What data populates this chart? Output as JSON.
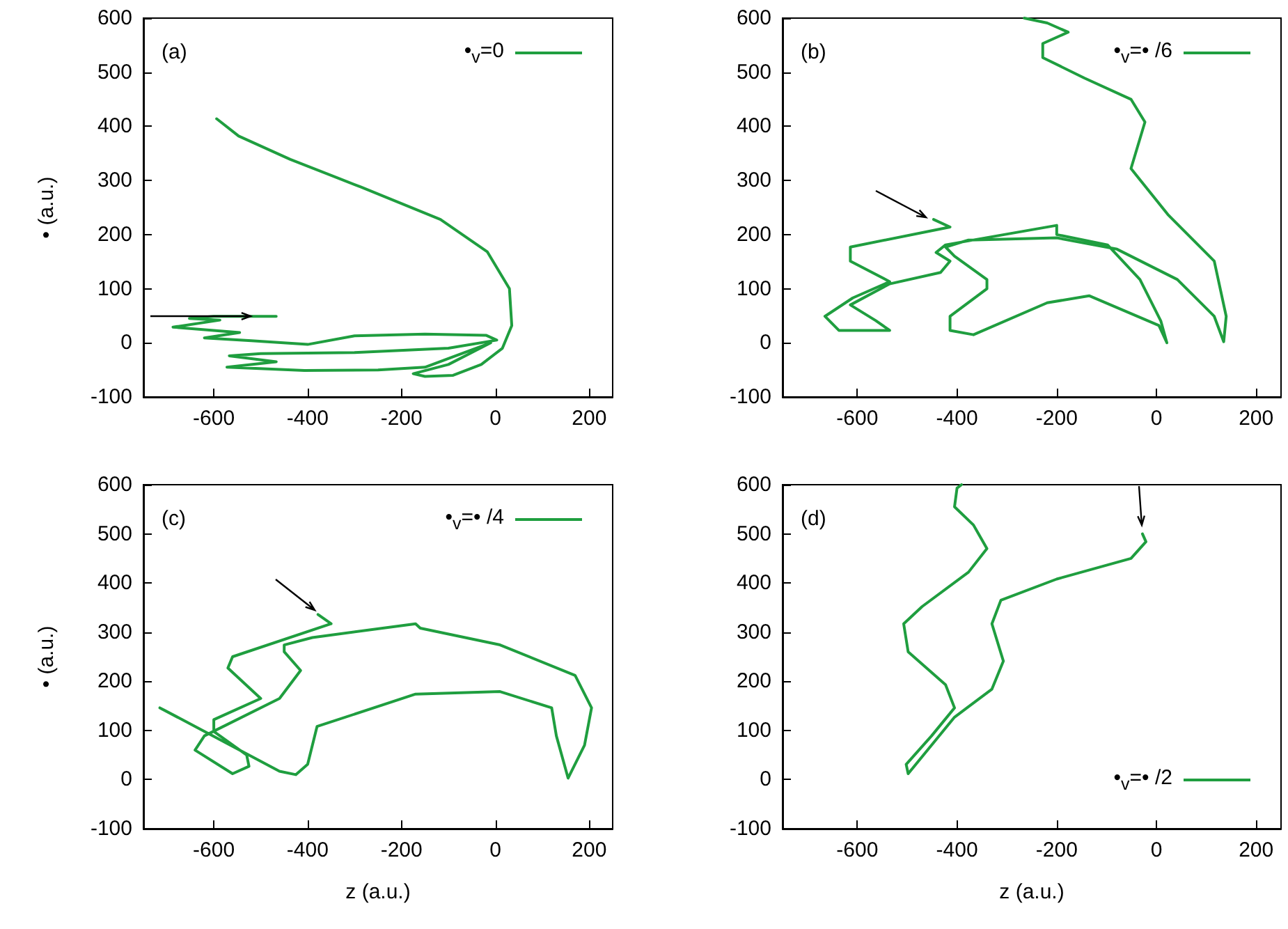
{
  "chart_data": [
    {
      "type": "line",
      "title": "(a)",
      "ylabel": "• (a.u.)",
      "xlim": [
        -750,
        250
      ],
      "ylim": [
        -100,
        600
      ],
      "xticks": [
        -600,
        -400,
        -200,
        0,
        200
      ],
      "yticks": [
        -100,
        0,
        100,
        200,
        300,
        400,
        500,
        600
      ],
      "legend": "top right",
      "marker": "none",
      "grid": false,
      "series": [
        {
          "name": "•$_{v}$=0",
          "color": "#1f9e3f",
          "x": [
            -467,
            -600,
            -652,
            -587,
            -687,
            -545,
            -620,
            -520,
            -400,
            -300,
            -150,
            -20,
            3,
            -100,
            -300,
            -500,
            -567,
            -467,
            -572,
            -407,
            -250,
            -150,
            -10,
            -100,
            -175,
            -150,
            -90,
            -30,
            15,
            35,
            30,
            -17,
            -117,
            -287,
            -437,
            -547,
            -594
          ],
          "values": [
            49,
            49,
            45,
            42,
            29,
            19,
            9,
            4,
            -3,
            13,
            16,
            14,
            5,
            -10,
            -18,
            -20,
            -24,
            -35,
            -45,
            -51,
            -50,
            -45,
            0,
            -40,
            -57,
            -62,
            -60,
            -40,
            -10,
            32,
            100,
            168,
            228,
            288,
            339,
            382,
            414
          ]
        }
      ]
    },
    {
      "type": "line",
      "title": "(b)",
      "xlim": [
        -750,
        250
      ],
      "ylim": [
        -100,
        600
      ],
      "xticks": [
        -600,
        -400,
        -200,
        0,
        200
      ],
      "yticks": [
        -100,
        0,
        100,
        200,
        300,
        400,
        500,
        600
      ],
      "legend": "top right",
      "marker": "none",
      "grid": false,
      "series": [
        {
          "name": "•$_{v}$=• /6",
          "color": "#1f9e3f",
          "x": [
            -447,
            -414,
            -614,
            -614,
            -535,
            -609,
            -665,
            -637,
            -535,
            -563,
            -614,
            -535,
            -433,
            -414,
            -442,
            -423,
            -200,
            -200,
            -98,
            -33,
            9,
            21,
            5,
            -135,
            -219,
            -367,
            -414,
            -414,
            -340,
            -340,
            -405,
            -423,
            -377,
            -200,
            -79,
            42,
            116,
            135,
            140,
            116,
            23,
            -51,
            -23,
            -51,
            -144,
            -228,
            -228,
            -177,
            -219,
            -265
          ],
          "values": [
            228,
            214,
            177,
            151,
            113,
            83,
            49,
            23,
            23,
            41,
            70,
            109,
            130,
            151,
            167,
            181,
            217,
            200,
            181,
            117,
            40,
            0,
            32,
            87,
            74,
            15,
            23,
            49,
            100,
            117,
            160,
            177,
            190,
            194,
            173,
            117,
            49,
            2,
            49,
            151,
            237,
            322,
            408,
            450,
            489,
            527,
            553,
            574,
            591,
            600
          ]
        }
      ]
    },
    {
      "type": "line",
      "title": "(c)",
      "xlabel": "z (a.u.)",
      "ylabel": "• (a.u.)",
      "xlim": [
        -750,
        250
      ],
      "ylim": [
        -100,
        600
      ],
      "xticks": [
        -600,
        -400,
        -200,
        0,
        200
      ],
      "yticks": [
        -100,
        0,
        100,
        200,
        300,
        400,
        500,
        600
      ],
      "legend": "top right",
      "marker": "none",
      "grid": false,
      "series": [
        {
          "name": "•$_{v}$=• /4",
          "color": "#1f9e3f",
          "x": [
            -378,
            -350,
            -560,
            -570,
            -500,
            -600,
            -600,
            -530,
            -525,
            -560,
            -640,
            -620,
            -460,
            -415,
            -450,
            -450,
            -390,
            -170,
            -160,
            10,
            170,
            205,
            190,
            155,
            130,
            120,
            10,
            -170,
            -380,
            -400,
            -425,
            -460,
            -715
          ],
          "values": [
            336,
            317,
            250,
            227,
            165,
            122,
            98,
            50,
            27,
            12,
            60,
            89,
            165,
            222,
            260,
            274,
            289,
            317,
            308,
            274,
            212,
            146,
            70,
            3,
            89,
            146,
            179,
            174,
            108,
            31,
            10,
            17,
            146
          ]
        }
      ]
    },
    {
      "type": "line",
      "title": "(d)",
      "xlabel": "z (a.u.)",
      "xlim": [
        -750,
        250
      ],
      "ylim": [
        -100,
        600
      ],
      "xticks": [
        -600,
        -400,
        -200,
        0,
        200
      ],
      "yticks": [
        -100,
        0,
        100,
        200,
        300,
        400,
        500,
        600
      ],
      "legend": "bottom right",
      "marker": "none",
      "grid": false,
      "series": [
        {
          "name": "•$_{v}$=• /2",
          "color": "#1f9e3f",
          "x": [
            -28,
            -21,
            -51,
            -200,
            -312,
            -330,
            -307,
            -330,
            -405,
            -498,
            -502,
            -451,
            -405,
            -423,
            -498,
            -507,
            -470,
            -377,
            -340,
            -367,
            -405,
            -400,
            -391
          ],
          "values": [
            500,
            484,
            450,
            408,
            365,
            317,
            241,
            184,
            127,
            12,
            31,
            89,
            146,
            193,
            260,
            317,
            352,
            422,
            470,
            518,
            555,
            593,
            600
          ]
        }
      ]
    }
  ]
}
